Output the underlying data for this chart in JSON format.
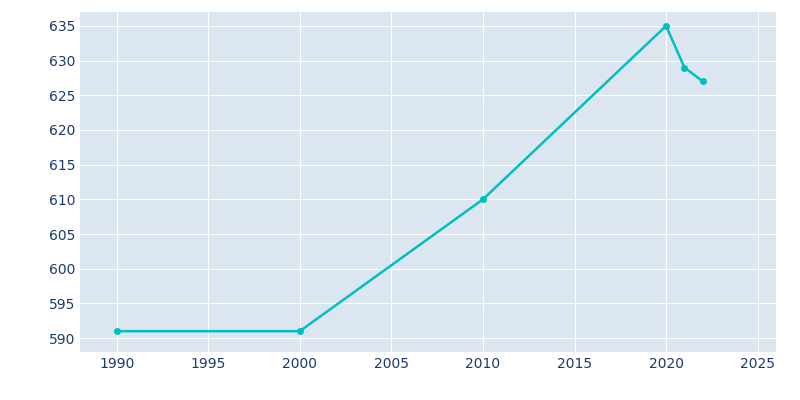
{
  "years": [
    1990,
    2000,
    2010,
    2020,
    2021,
    2022
  ],
  "population": [
    591,
    591,
    610,
    635,
    629,
    627
  ],
  "line_color": "#00BFBF",
  "background_color": "#dce6f0",
  "figure_facecolor": "#ffffff",
  "grid_color": "#ffffff",
  "xlabel": "",
  "ylabel": "",
  "xlim": [
    1988,
    2026
  ],
  "ylim": [
    588,
    637
  ],
  "xticks": [
    1990,
    1995,
    2000,
    2005,
    2010,
    2015,
    2020,
    2025
  ],
  "yticks": [
    590,
    595,
    600,
    605,
    610,
    615,
    620,
    625,
    630,
    635
  ],
  "tick_label_color": "#1a3a6e",
  "line_width": 1.8,
  "marker_size": 4
}
